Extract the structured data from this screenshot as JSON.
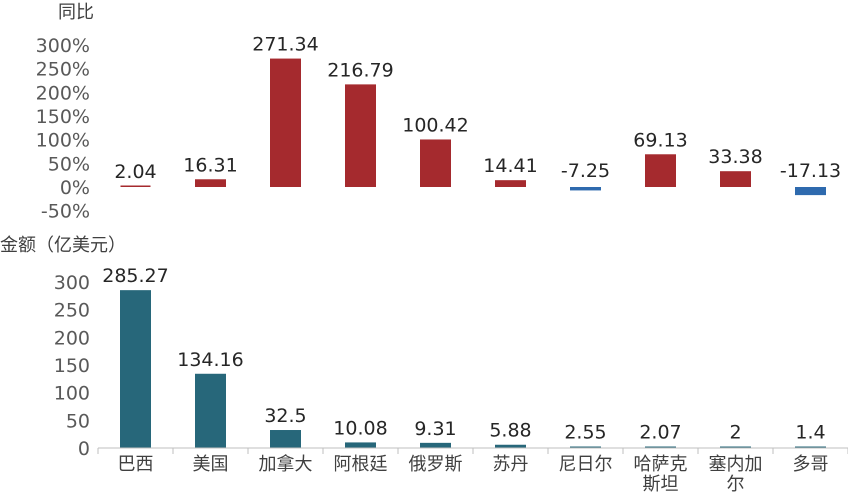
{
  "chart_data": [
    {
      "type": "bar",
      "ylabel": "同比",
      "categories": [
        "巴西",
        "美国",
        "加拿大",
        "阿根廷",
        "俄罗斯",
        "苏丹",
        "尼日尔",
        "哈萨克斯坦",
        "塞内加尔",
        "多哥"
      ],
      "values": [
        2.04,
        16.31,
        271.34,
        216.79,
        100.42,
        14.41,
        -7.25,
        69.13,
        33.38,
        -17.13
      ],
      "data_labels": [
        "2.04",
        "16.31",
        "271.34",
        "216.79",
        "100.42",
        "14.41",
        "-7.25",
        "69.13",
        "33.38",
        "-17.13"
      ],
      "ylim": [
        -50,
        300
      ],
      "yticks": [
        -50,
        0,
        50,
        100,
        150,
        200,
        250,
        300
      ],
      "ytick_labels": [
        "-50%",
        "0%",
        "50%",
        "100%",
        "150%",
        "200%",
        "250%",
        "300%"
      ],
      "colors": {
        "positive": "#A52A2E",
        "negative": "#2E6AAE"
      },
      "grid": false
    },
    {
      "type": "bar",
      "ylabel": "金额（亿美元）",
      "categories": [
        "巴西",
        "美国",
        "加拿大",
        "阿根廷",
        "俄罗斯",
        "苏丹",
        "尼日尔",
        "哈萨克斯坦",
        "塞内加尔",
        "多哥"
      ],
      "category_lines": [
        [
          "巴西"
        ],
        [
          "美国"
        ],
        [
          "加拿大"
        ],
        [
          "阿根廷"
        ],
        [
          "俄罗斯"
        ],
        [
          "苏丹"
        ],
        [
          "尼日尔"
        ],
        [
          "哈萨克",
          "斯坦"
        ],
        [
          "塞内加",
          "尔"
        ],
        [
          "多哥"
        ]
      ],
      "values": [
        285.27,
        134.16,
        32.5,
        10.08,
        9.31,
        5.88,
        2.55,
        2.07,
        2,
        1.4
      ],
      "data_labels": [
        "285.27",
        "134.16",
        "32.5",
        "10.08",
        "9.31",
        "5.88",
        "2.55",
        "2.07",
        "2",
        "1.4"
      ],
      "ylim": [
        0,
        300
      ],
      "yticks": [
        0,
        50,
        100,
        150,
        200,
        250,
        300
      ],
      "ytick_labels": [
        "0",
        "50",
        "100",
        "150",
        "200",
        "250",
        "300"
      ],
      "colors": {
        "bar": "#27677A",
        "axis": "#BFBFBF"
      },
      "grid": false
    }
  ]
}
